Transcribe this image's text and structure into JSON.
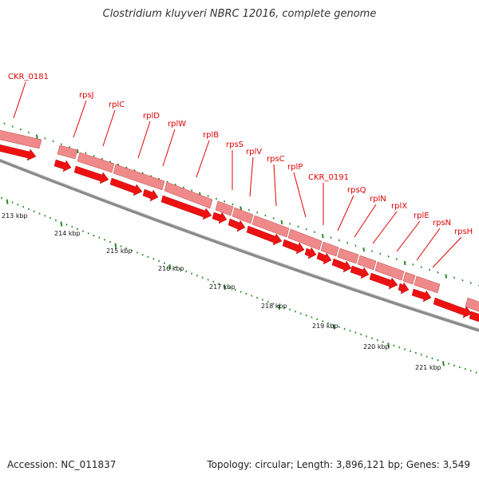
{
  "title": "Clostridium kluyveri NBRC 12016, complete genome",
  "footer": {
    "accession": "Accession: NC_011837",
    "summary": "Topology: circular; Length: 3,896,121 bp; Genes: 3,549"
  },
  "colors": {
    "gene_fill": "#ee1111",
    "gene_band": "#f08a8a",
    "label": "#e00000",
    "tick": "#2a8a2a",
    "backbone": "#8a8a8a"
  },
  "genes": [
    {
      "name": "CKR_0181"
    },
    {
      "name": "rpsJ"
    },
    {
      "name": "rplC"
    },
    {
      "name": "rplD"
    },
    {
      "name": "rplW"
    },
    {
      "name": "rplB"
    },
    {
      "name": "rpsS"
    },
    {
      "name": "rplV"
    },
    {
      "name": "rpsC"
    },
    {
      "name": "rplP"
    },
    {
      "name": "CKR_0191"
    },
    {
      "name": "rpsQ"
    },
    {
      "name": "rplN"
    },
    {
      "name": "rplX"
    },
    {
      "name": "rplE"
    },
    {
      "name": "rpsN"
    },
    {
      "name": "rpsH"
    }
  ],
  "scale_labels": [
    "213 kbp",
    "214 kbp",
    "215 kbp",
    "216 kbp",
    "217 kbp",
    "218 kbp",
    "219 kbp",
    "220 kbp",
    "221 kbp"
  ]
}
